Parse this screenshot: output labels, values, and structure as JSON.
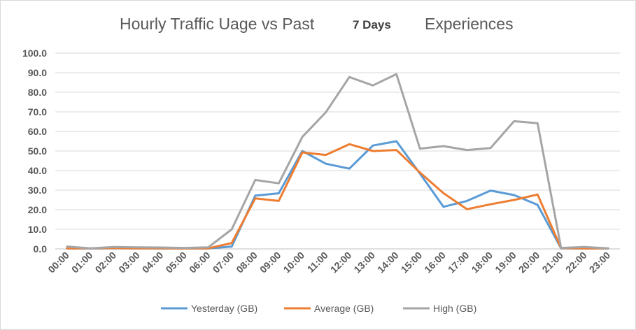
{
  "chart_data": {
    "type": "line",
    "title": {
      "part1": "Hourly Traffic Uage vs Past",
      "part2": "7 Days",
      "part3": "Experiences"
    },
    "xlabel": "",
    "ylabel": "",
    "ylim": [
      0,
      100
    ],
    "yticks": [
      "0.0",
      "10.0",
      "20.0",
      "30.0",
      "40.0",
      "50.0",
      "60.0",
      "70.0",
      "80.0",
      "90.0",
      "100.0"
    ],
    "categories": [
      "00:00",
      "01:00",
      "02:00",
      "03:00",
      "04:00",
      "05:00",
      "06:00",
      "07:00",
      "08:00",
      "09:00",
      "10:00",
      "11:00",
      "12:00",
      "13:00",
      "14:00",
      "15:00",
      "16:00",
      "17:00",
      "18:00",
      "19:00",
      "20:00",
      "21:00",
      "22:00",
      "23:00"
    ],
    "grid": true,
    "legend_position": "bottom",
    "series": [
      {
        "name": "Yesterday (GB)",
        "color": "#5b9bd5",
        "values": [
          0.2,
          0.2,
          0.3,
          0.3,
          0.2,
          0.2,
          0.2,
          1.2,
          27.2,
          28.4,
          50.0,
          43.5,
          41.0,
          52.8,
          55.0,
          38.5,
          21.5,
          24.5,
          29.8,
          27.5,
          22.5,
          0.3,
          0.2,
          0.3
        ]
      },
      {
        "name": "Average (GB)",
        "color": "#ed7d31",
        "values": [
          0.3,
          0.3,
          0.4,
          0.3,
          0.3,
          0.2,
          0.3,
          3.0,
          25.8,
          24.5,
          49.3,
          48.0,
          53.5,
          50.0,
          50.5,
          39.0,
          28.5,
          20.3,
          22.8,
          25.0,
          27.8,
          0.4,
          0.3,
          0.2
        ]
      },
      {
        "name": "High (GB)",
        "color": "#a5a5a5",
        "values": [
          1.2,
          0.3,
          1.0,
          0.8,
          0.7,
          0.5,
          0.8,
          10.0,
          35.2,
          33.5,
          57.2,
          69.8,
          87.8,
          83.5,
          89.3,
          51.2,
          52.5,
          50.5,
          51.5,
          65.2,
          64.2,
          0.5,
          1.0,
          0.3
        ]
      }
    ]
  }
}
